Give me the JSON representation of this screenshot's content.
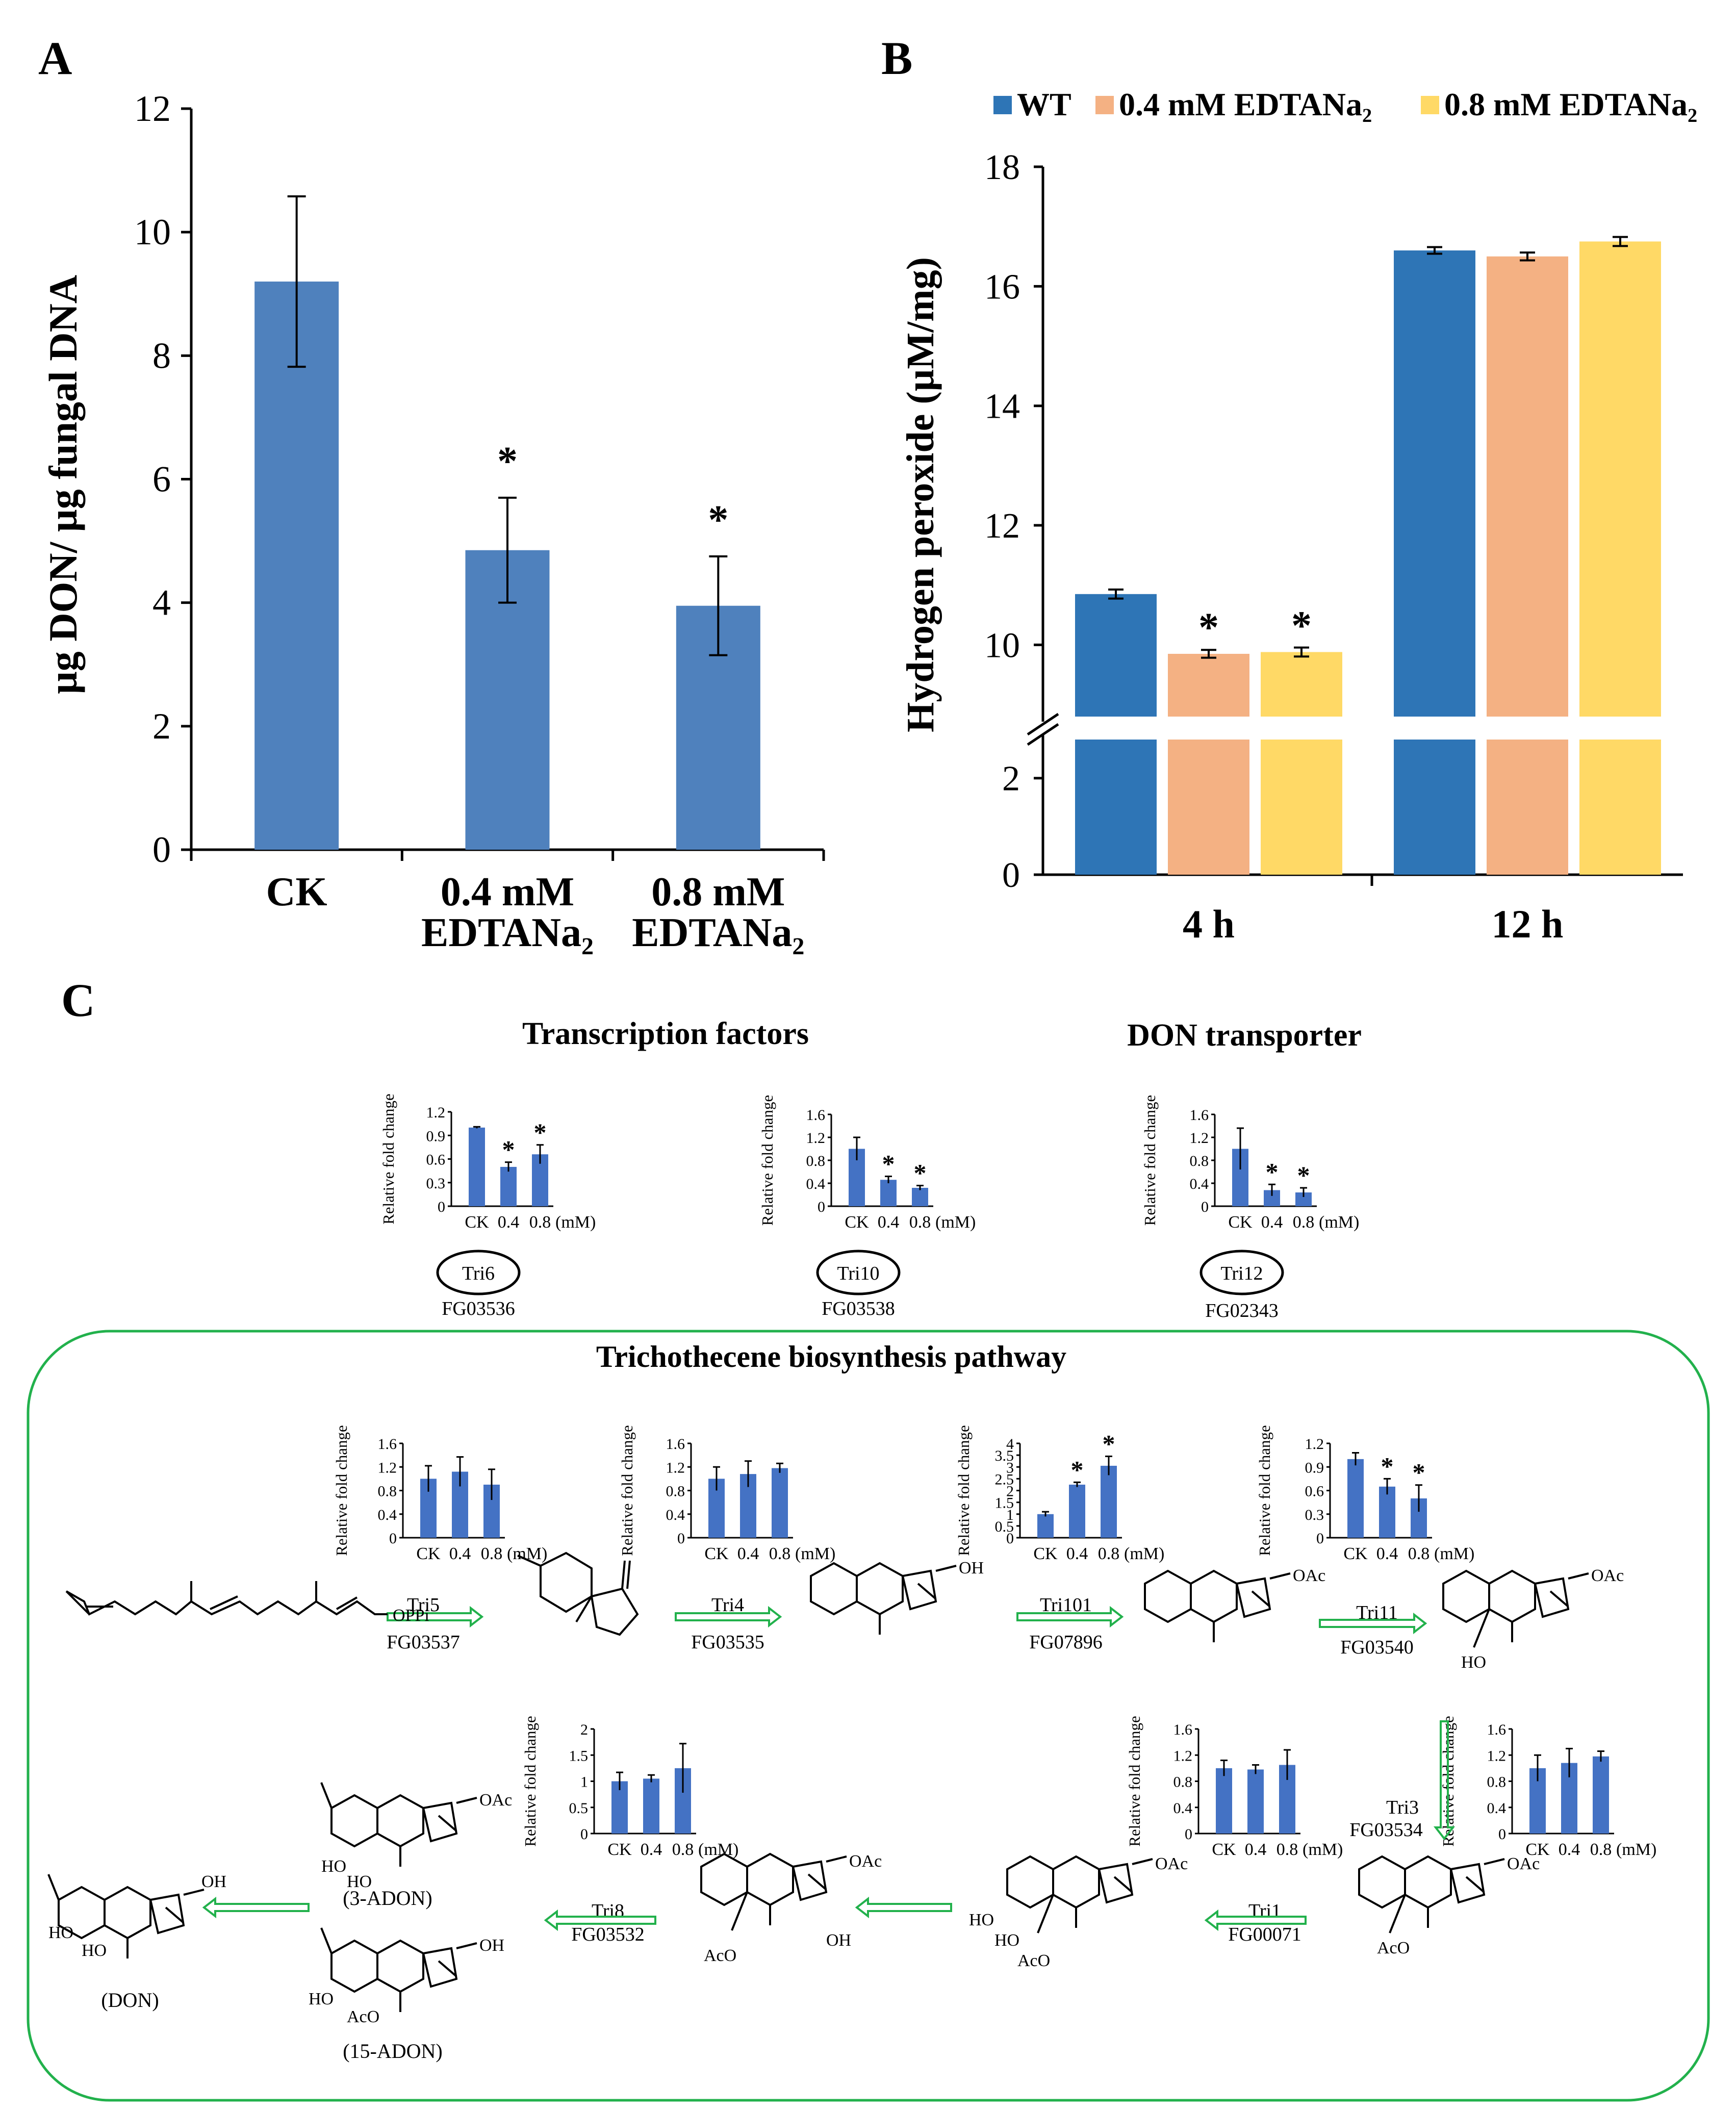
{
  "colors": {
    "blue_a": "#4F81BD",
    "wt": "#2E75B6",
    "c04": "#F4B183",
    "c08": "#FFD966",
    "small": "#4472C4",
    "arrow": "#22B14C",
    "frame": "#22B14C"
  },
  "chart_data": [
    {
      "id": "A",
      "type": "bar",
      "panel_label": "A",
      "categories": [
        "CK",
        "0.4 mM EDTANa₂",
        "0.8 mM EDTANa₂"
      ],
      "category_lines": [
        [
          "CK"
        ],
        [
          "0.4 mM",
          "EDTANa₂"
        ],
        [
          "0.8 mM",
          "EDTANa₂"
        ]
      ],
      "values": [
        9.2,
        4.85,
        3.95
      ],
      "errors": [
        1.38,
        0.85,
        0.8
      ],
      "significant": [
        false,
        true,
        true
      ],
      "ylabel": "µg DON/ µg fungal DNA",
      "ylim": [
        0,
        12
      ],
      "yticks": [
        "0",
        "2",
        "4",
        "6",
        "8",
        "10",
        "12"
      ]
    },
    {
      "id": "B",
      "type": "bar",
      "panel_label": "B",
      "categories": [
        "4 h",
        "12 h"
      ],
      "legend": [
        "WT",
        "0.4 mM EDTANa₂",
        "0.8 mM EDTANa₂"
      ],
      "series": [
        {
          "name": "WT",
          "values": [
            10.85,
            16.6
          ],
          "errors": [
            0.05,
            0.03
          ]
        },
        {
          "name": "0.4 mM EDTANa₂",
          "values": [
            9.85,
            16.5
          ],
          "errors": [
            0.04,
            0.04
          ]
        },
        {
          "name": "0.8 mM EDTANa₂",
          "values": [
            9.88,
            16.75
          ],
          "errors": [
            0.05,
            0.05
          ]
        }
      ],
      "significant": [
        [
          false,
          false
        ],
        [
          true,
          false
        ],
        [
          true,
          false
        ]
      ],
      "ylabel": "Hydrogen peroxide (µM/mg)",
      "axis_break": [
        2.8,
        8.8
      ],
      "yticks": [
        "0",
        "2",
        "10",
        "12",
        "14",
        "16",
        "18"
      ]
    },
    {
      "id": "C",
      "type": "bar",
      "panel_label": "C",
      "title_tf": "Transcription factors",
      "title_transporter": "DON transporter",
      "title_pathway": "Trichothecene biosynthesis pathway",
      "ylabel": "Relative fold change",
      "categories": [
        "CK",
        "0.4",
        "0.8"
      ],
      "unit": "(mM)",
      "minis": [
        {
          "gene": "Tri6",
          "id": "FG03536",
          "ymax": 1.2,
          "ticks": [
            "0",
            "0.3",
            "0.6",
            "0.9",
            "1.2"
          ],
          "values": [
            1.0,
            0.5,
            0.66
          ],
          "errors": [
            0.01,
            0.06,
            0.12
          ],
          "sig": [
            false,
            true,
            true
          ]
        },
        {
          "gene": "Tri10",
          "id": "FG03538",
          "ymax": 1.6,
          "ticks": [
            "0",
            "0.4",
            "0.8",
            "1.2",
            "1.6"
          ],
          "values": [
            1.0,
            0.46,
            0.32
          ],
          "errors": [
            0.2,
            0.06,
            0.04
          ],
          "sig": [
            false,
            true,
            true
          ]
        },
        {
          "gene": "Tri12",
          "id": "FG02343",
          "ymax": 1.6,
          "ticks": [
            "0",
            "0.4",
            "0.8",
            "1.2",
            "1.6"
          ],
          "values": [
            1.0,
            0.28,
            0.24
          ],
          "errors": [
            0.36,
            0.1,
            0.08
          ],
          "sig": [
            false,
            true,
            true
          ]
        },
        {
          "gene": "Tri5",
          "id": "FG03537",
          "ymax": 1.6,
          "ticks": [
            "0",
            "0.4",
            "0.8",
            "1.2",
            "1.6"
          ],
          "values": [
            1.0,
            1.12,
            0.9
          ],
          "errors": [
            0.22,
            0.25,
            0.26
          ],
          "sig": [
            false,
            false,
            false
          ]
        },
        {
          "gene": "Tri4",
          "id": "FG03535",
          "ymax": 1.6,
          "ticks": [
            "0",
            "0.4",
            "0.8",
            "1.2",
            "1.6"
          ],
          "values": [
            1.0,
            1.08,
            1.18
          ],
          "errors": [
            0.2,
            0.22,
            0.08
          ],
          "sig": [
            false,
            false,
            false
          ]
        },
        {
          "gene": "Tri101",
          "id": "FG07896",
          "ymax": 4,
          "ticks": [
            "0",
            "0.5",
            "1",
            "1.5",
            "2",
            "2.5",
            "3",
            "3.5",
            "4"
          ],
          "values": [
            1.0,
            2.25,
            3.05
          ],
          "errors": [
            0.1,
            0.1,
            0.4
          ],
          "sig": [
            false,
            true,
            true
          ]
        },
        {
          "gene": "Tri11",
          "id": "FG03540",
          "ymax": 1.2,
          "ticks": [
            "0",
            "0.3",
            "0.6",
            "0.9",
            "1.2"
          ],
          "values": [
            1.0,
            0.65,
            0.5
          ],
          "errors": [
            0.08,
            0.1,
            0.17
          ],
          "sig": [
            false,
            true,
            true
          ]
        },
        {
          "gene": "Tri8",
          "id": "FG03532",
          "ymax": 2,
          "ticks": [
            "0",
            "0.5",
            "1",
            "1.5",
            "2"
          ],
          "values": [
            1.0,
            1.05,
            1.25
          ],
          "errors": [
            0.17,
            0.07,
            0.47
          ],
          "sig": [
            false,
            false,
            false
          ]
        },
        {
          "gene": "Tri1",
          "id": "FG00071",
          "ymax": 1.6,
          "ticks": [
            "0",
            "0.4",
            "0.8",
            "1.2",
            "1.6"
          ],
          "values": [
            1.0,
            0.98,
            1.05
          ],
          "errors": [
            0.12,
            0.07,
            0.23
          ],
          "sig": [
            false,
            false,
            false
          ]
        },
        {
          "gene": "Tri3",
          "id": "FG03534",
          "ymax": 1.6,
          "ticks": [
            "0",
            "0.4",
            "0.8",
            "1.2",
            "1.6"
          ],
          "values": [
            1.0,
            1.08,
            1.18
          ],
          "errors": [
            0.2,
            0.22,
            0.08
          ],
          "sig": [
            false,
            false,
            false
          ]
        }
      ],
      "chemicals": {
        "oppi": "OPPi",
        "oh": "OH",
        "oac": "OAc",
        "ho": "HO",
        "aco": "AcO",
        "don": "(DON)",
        "adon3": "(3-ADON)",
        "adon15": "(15-ADON)"
      }
    }
  ]
}
